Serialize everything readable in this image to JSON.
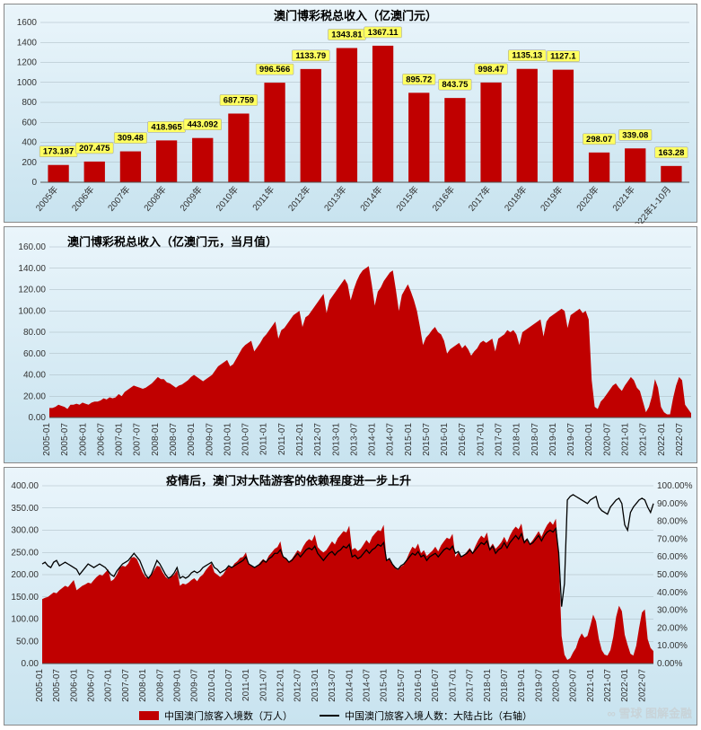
{
  "chart1": {
    "type": "bar",
    "title": "澳门博彩税总收入（亿澳门元）",
    "title_fontsize": 13,
    "categories": [
      "2005年",
      "2006年",
      "2007年",
      "2008年",
      "2009年",
      "2010年",
      "2011年",
      "2012年",
      "2013年",
      "2014年",
      "2015年",
      "2016年",
      "2017年",
      "2018年",
      "2019年",
      "2020年",
      "2021年",
      "2022年1-10月"
    ],
    "values": [
      173.187,
      207.475,
      309.48,
      418.965,
      443.092,
      687.759,
      996.566,
      1133.79,
      1343.81,
      1367.11,
      895.72,
      843.75,
      998.47,
      1135.13,
      1127.1,
      298.07,
      339.08,
      163.28
    ],
    "bar_color": "#c00000",
    "ylim": [
      0,
      1600
    ],
    "ytick_step": 200,
    "background_gradient": [
      "#eaf5fb",
      "#c8e3ef"
    ],
    "grid_color": "#a8b8c0",
    "bar_width": 0.58,
    "label_fontsize": 9.5,
    "label_bg": "#ffff60",
    "axis_fontsize": 10,
    "xlabel_rotation": -50
  },
  "chart2": {
    "type": "area",
    "title": "澳门博彩税总收入（亿澳门元，当月值）",
    "title_fontsize": 13,
    "fill_color": "#c00000",
    "ylim": [
      0,
      160
    ],
    "ytick_step": 20,
    "x_start": "2005-01",
    "x_end": "2022-10",
    "x_tick_months": 6,
    "background_gradient": [
      "#eaf5fb",
      "#c8e3ef"
    ],
    "grid_color": "#a8b8c0",
    "axis_fontsize": 10,
    "xlabel_rotation": -90,
    "series": [
      9,
      9,
      10,
      12,
      11,
      10,
      8,
      12,
      12,
      13,
      12,
      14,
      13,
      12,
      14,
      15,
      15,
      16,
      18,
      17,
      19,
      18,
      19,
      22,
      20,
      24,
      26,
      28,
      30,
      29,
      28,
      27,
      28,
      30,
      32,
      35,
      38,
      36,
      36,
      33,
      32,
      30,
      28,
      30,
      31,
      33,
      35,
      38,
      40,
      38,
      36,
      34,
      36,
      38,
      40,
      44,
      48,
      50,
      52,
      54,
      48,
      50,
      55,
      60,
      65,
      68,
      70,
      72,
      62,
      66,
      70,
      75,
      78,
      82,
      86,
      90,
      74,
      82,
      84,
      88,
      92,
      96,
      98,
      100,
      85,
      94,
      96,
      100,
      104,
      108,
      112,
      116,
      98,
      110,
      114,
      118,
      122,
      126,
      130,
      125,
      110,
      120,
      128,
      134,
      138,
      140,
      142,
      125,
      105,
      118,
      122,
      128,
      132,
      136,
      138,
      120,
      100,
      115,
      120,
      125,
      118,
      110,
      100,
      85,
      68,
      75,
      78,
      82,
      85,
      80,
      78,
      72,
      60,
      64,
      66,
      68,
      70,
      65,
      68,
      64,
      58,
      62,
      65,
      70,
      72,
      70,
      72,
      74,
      62,
      74,
      76,
      78,
      82,
      80,
      82,
      78,
      68,
      80,
      82,
      84,
      86,
      88,
      90,
      92,
      76,
      90,
      94,
      96,
      98,
      100,
      102,
      100,
      84,
      96,
      98,
      100,
      102,
      98,
      100,
      92,
      35,
      10,
      8,
      15,
      18,
      22,
      26,
      30,
      32,
      28,
      25,
      30,
      34,
      38,
      35,
      28,
      25,
      15,
      5,
      10,
      20,
      36,
      28,
      10,
      5,
      3,
      3,
      18,
      30,
      38,
      35,
      12,
      8,
      4
    ]
  },
  "chart3": {
    "type": "area_with_line",
    "title": "疫情后，澳门对大陆游客的依赖程度进一步上升",
    "title_fontsize": 13,
    "area_fill_color": "#c00000",
    "line_color": "#000000",
    "line_width": 1.3,
    "y1_lim": [
      0,
      400
    ],
    "y1_tick_step": 50,
    "y2_lim": [
      0,
      100
    ],
    "y2_tick_step": 10,
    "y2_suffix": "%",
    "x_start": "2005-01",
    "x_end": "2022-10",
    "x_tick_months": 6,
    "background_gradient": [
      "#eaf5fb",
      "#c8e3ef"
    ],
    "grid_color": "#a8b8c0",
    "axis_fontsize": 10,
    "xlabel_rotation": -90,
    "legend_area": "中国澳门旅客入境数（万人）",
    "legend_line": "中国澳门旅客入境人数：大陆占比（右轴）",
    "area_series": [
      145,
      148,
      150,
      155,
      160,
      158,
      165,
      170,
      175,
      172,
      180,
      188,
      165,
      170,
      175,
      178,
      182,
      180,
      188,
      195,
      200,
      198,
      205,
      212,
      185,
      190,
      200,
      215,
      220,
      218,
      225,
      238,
      240,
      235,
      220,
      205,
      195,
      192,
      198,
      210,
      220,
      218,
      205,
      195,
      190,
      195,
      200,
      210,
      175,
      180,
      178,
      182,
      188,
      192,
      185,
      195,
      200,
      210,
      218,
      225,
      205,
      200,
      195,
      200,
      210,
      218,
      215,
      225,
      230,
      238,
      240,
      250,
      225,
      220,
      215,
      220,
      228,
      235,
      230,
      243,
      250,
      258,
      262,
      275,
      240,
      235,
      230,
      235,
      245,
      255,
      250,
      264,
      274,
      280,
      276,
      290,
      262,
      255,
      250,
      255,
      265,
      275,
      268,
      282,
      290,
      298,
      295,
      310,
      256,
      260,
      253,
      258,
      268,
      278,
      270,
      285,
      293,
      300,
      298,
      312,
      232,
      238,
      225,
      215,
      210,
      218,
      222,
      235,
      250,
      263,
      258,
      270,
      248,
      255,
      242,
      248,
      254,
      263,
      252,
      266,
      275,
      283,
      280,
      292,
      240,
      250,
      238,
      244,
      252,
      260,
      250,
      265,
      278,
      288,
      282,
      295,
      260,
      270,
      258,
      265,
      273,
      285,
      272,
      288,
      300,
      308,
      302,
      315,
      276,
      282,
      270,
      278,
      288,
      298,
      285,
      300,
      312,
      320,
      312,
      326,
      240,
      62,
      20,
      8,
      12,
      25,
      35,
      55,
      68,
      58,
      62,
      85,
      110,
      95,
      55,
      30,
      20,
      18,
      30,
      60,
      105,
      130,
      118,
      65,
      42,
      22,
      18,
      40,
      80,
      115,
      122,
      55,
      35,
      28
    ],
    "line_series": [
      56,
      57,
      55,
      54,
      57,
      58,
      55,
      56,
      57,
      56,
      55,
      54,
      53,
      50,
      52,
      54,
      56,
      55,
      54,
      55,
      56,
      55,
      54,
      52,
      50,
      49,
      52,
      54,
      56,
      57,
      58,
      60,
      62,
      60,
      58,
      54,
      50,
      48,
      50,
      54,
      58,
      56,
      53,
      50,
      48,
      49,
      51,
      54,
      48,
      49,
      48,
      49,
      51,
      52,
      51,
      52,
      54,
      55,
      56,
      57,
      54,
      53,
      51,
      52,
      53,
      55,
      54,
      55,
      56,
      57,
      58,
      60,
      56,
      55,
      54,
      55,
      56,
      58,
      57,
      59,
      60,
      62,
      62,
      64,
      60,
      59,
      57,
      58,
      60,
      62,
      60,
      62,
      64,
      65,
      64,
      66,
      62,
      60,
      58,
      60,
      62,
      63,
      61,
      63,
      64,
      66,
      65,
      67,
      60,
      61,
      59,
      60,
      62,
      64,
      62,
      64,
      65,
      67,
      66,
      68,
      58,
      59,
      56,
      54,
      53,
      55,
      56,
      58,
      60,
      62,
      61,
      63,
      60,
      61,
      58,
      60,
      61,
      62,
      60,
      62,
      64,
      65,
      64,
      66,
      62,
      63,
      60,
      61,
      62,
      64,
      62,
      64,
      66,
      68,
      67,
      69,
      64,
      66,
      62,
      64,
      65,
      68,
      65,
      68,
      70,
      72,
      70,
      73,
      68,
      70,
      67,
      68,
      70,
      72,
      69,
      72,
      74,
      75,
      74,
      76,
      62,
      32,
      45,
      92,
      94,
      95,
      94,
      93,
      92,
      91,
      90,
      92,
      93,
      94,
      88,
      86,
      85,
      84,
      88,
      90,
      92,
      93,
      90,
      78,
      75,
      85,
      88,
      90,
      92,
      93,
      92,
      88,
      85,
      90
    ]
  }
}
